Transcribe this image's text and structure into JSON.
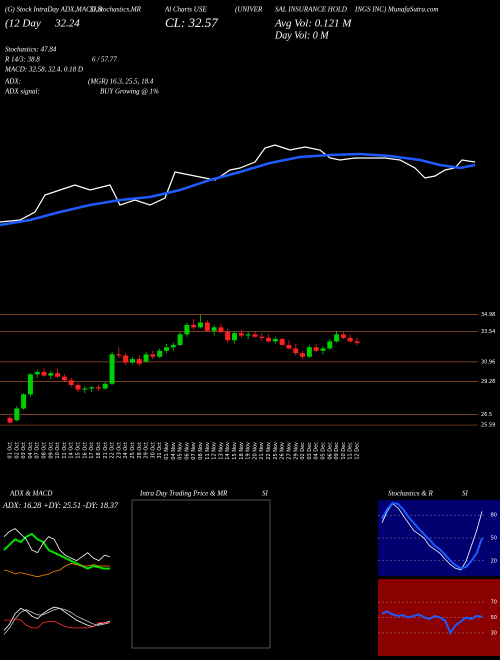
{
  "header": {
    "lines": [
      "(G) Stock IntraDay ADX,MACD,B",
      "SI,Stochastics,MR",
      "Al Charts USE",
      "(UNIVER",
      "SAL INSURANCE HOLD",
      "INGS INC) MunafaSutra.com",
      "(12 Day",
      "32.24",
      "CL: 32.57",
      "Avg Vol: 0.121 M",
      "Day Vol: 0   M",
      "Stochastics: 47.84",
      "R 14/3: 38.8",
      "6 / 57.77",
      "MACD: 32.58, 32.4, 0.18 D",
      "ADX:",
      "(MGR) 16.3, 25.5, 18.4",
      "ADX  signal:",
      "BUY Growing @ 1%"
    ]
  },
  "price_line": {
    "type": "line",
    "xlim": [
      0,
      475
    ],
    "ylim": [
      0,
      120
    ],
    "series": [
      {
        "color": "#ffffff",
        "x": [
          0,
          20,
          35,
          45,
          60,
          75,
          90,
          110,
          120,
          135,
          150,
          165,
          175,
          190,
          205,
          215,
          230,
          240,
          255,
          265,
          275,
          290,
          305,
          320,
          330,
          340,
          355,
          370,
          385,
          400,
          415,
          425,
          435,
          445,
          455,
          462,
          475
        ],
        "values": [
          18,
          20,
          28,
          45,
          50,
          55,
          50,
          55,
          35,
          40,
          35,
          42,
          68,
          65,
          62,
          60,
          70,
          72,
          78,
          92,
          95,
          90,
          93,
          90,
          82,
          80,
          82,
          82,
          82,
          80,
          72,
          62,
          64,
          70,
          72,
          80,
          78
        ]
      },
      {
        "color": "#1e5bff",
        "x": [
          0,
          30,
          60,
          90,
          120,
          150,
          180,
          210,
          240,
          270,
          300,
          330,
          360,
          390,
          420,
          440,
          460,
          475
        ],
        "values": [
          15,
          20,
          28,
          35,
          40,
          43,
          50,
          60,
          68,
          77,
          83,
          85,
          86,
          84,
          80,
          75,
          72,
          75
        ]
      }
    ]
  },
  "candles": {
    "type": "candlestick",
    "dates": [
      "01 Oct",
      "02 Oct",
      "03 Oct",
      "04 Oct",
      "07 Oct",
      "08 Oct",
      "09 Oct",
      "10 Oct",
      "11 Oct",
      "14 Oct",
      "15 Oct",
      "16 Oct",
      "17 Oct",
      "18 Oct",
      "21 Oct",
      "22 Oct",
      "23 Oct",
      "24 Oct",
      "25 Oct",
      "28 Oct",
      "29 Oct",
      "30 Oct",
      "31 Oct",
      "01 Nov",
      "04 Nov",
      "05 Nov",
      "06 Nov",
      "07 Nov",
      "08 Nov",
      "11 Nov",
      "12 Nov",
      "13 Nov",
      "14 Nov",
      "15 Nov",
      "18 Nov",
      "19 Nov",
      "20 Nov",
      "21 Nov",
      "22 Nov",
      "25 Nov",
      "26 Nov",
      "27 Nov",
      "29 Nov",
      "02 Dec",
      "03 Dec",
      "04 Dec",
      "05 Dec",
      "06 Dec",
      "09 Dec",
      "10 Dec",
      "11 Dec",
      "12 Dec"
    ],
    "ohlc": [
      [
        26.2,
        26.4,
        25.7,
        25.8
      ],
      [
        26.0,
        27.2,
        25.9,
        27.0
      ],
      [
        27.0,
        28.3,
        26.9,
        28.2
      ],
      [
        28.2,
        30.0,
        28.0,
        29.9
      ],
      [
        29.9,
        30.3,
        29.6,
        30.1
      ],
      [
        30.1,
        30.4,
        29.7,
        29.8
      ],
      [
        29.8,
        30.2,
        29.5,
        30.0
      ],
      [
        30.0,
        30.4,
        29.6,
        29.7
      ],
      [
        29.7,
        29.9,
        29.3,
        29.4
      ],
      [
        29.4,
        29.6,
        28.8,
        29.0
      ],
      [
        29.0,
        29.2,
        28.4,
        28.6
      ],
      [
        28.6,
        28.9,
        28.3,
        28.7
      ],
      [
        28.7,
        28.9,
        28.4,
        28.8
      ],
      [
        28.8,
        29.0,
        28.5,
        28.7
      ],
      [
        28.7,
        29.3,
        28.6,
        29.1
      ],
      [
        29.1,
        31.8,
        29.0,
        31.6
      ],
      [
        31.6,
        32.2,
        31.3,
        31.5
      ],
      [
        31.5,
        31.7,
        30.7,
        30.9
      ],
      [
        30.9,
        31.4,
        30.8,
        31.2
      ],
      [
        31.2,
        31.5,
        30.6,
        30.8
      ],
      [
        31.0,
        31.8,
        30.9,
        31.6
      ],
      [
        31.6,
        31.9,
        31.2,
        31.4
      ],
      [
        31.4,
        32.1,
        31.3,
        31.9
      ],
      [
        31.9,
        32.5,
        31.7,
        32.2
      ],
      [
        32.2,
        32.6,
        31.9,
        32.4
      ],
      [
        32.4,
        33.5,
        32.3,
        33.3
      ],
      [
        33.3,
        34.3,
        33.1,
        34.1
      ],
      [
        34.1,
        34.6,
        33.7,
        33.9
      ],
      [
        33.9,
        35.0,
        33.8,
        34.3
      ],
      [
        34.3,
        34.5,
        33.5,
        33.6
      ],
      [
        33.6,
        34.1,
        33.2,
        33.9
      ],
      [
        33.9,
        34.2,
        33.4,
        33.5
      ],
      [
        33.5,
        33.8,
        32.6,
        32.8
      ],
      [
        32.8,
        33.6,
        32.5,
        33.4
      ],
      [
        33.4,
        33.7,
        33.0,
        33.2
      ],
      [
        33.2,
        33.5,
        32.9,
        33.3
      ],
      [
        33.3,
        33.6,
        33.0,
        33.1
      ],
      [
        33.1,
        33.4,
        32.8,
        33.0
      ],
      [
        33.0,
        33.3,
        32.6,
        32.7
      ],
      [
        32.7,
        33.1,
        32.5,
        32.9
      ],
      [
        32.9,
        33.0,
        32.3,
        32.4
      ],
      [
        32.4,
        32.8,
        32.0,
        32.1
      ],
      [
        32.1,
        32.5,
        31.5,
        31.7
      ],
      [
        31.7,
        31.9,
        31.2,
        31.4
      ],
      [
        31.4,
        32.4,
        31.3,
        32.2
      ],
      [
        32.2,
        32.5,
        31.8,
        31.9
      ],
      [
        31.9,
        32.3,
        31.6,
        32.1
      ],
      [
        32.1,
        32.9,
        32.0,
        32.7
      ],
      [
        32.7,
        33.6,
        32.6,
        33.3
      ],
      [
        33.3,
        33.5,
        32.9,
        33.0
      ],
      [
        33.0,
        33.3,
        32.6,
        32.7
      ],
      [
        32.7,
        33.0,
        32.4,
        32.57
      ]
    ],
    "ylim": [
      25,
      35.2
    ],
    "yticks": [
      34.98,
      33.54,
      30.96,
      29.28,
      26.5,
      25.59
    ],
    "up_color": "#00d000",
    "down_color": "#ff2020",
    "grid_color": "#a0522d"
  },
  "adx": {
    "type": "line",
    "title": "ADX  & MACD",
    "legend": "ADX: 16.28  +DY: 25.51  -DY: 18.37",
    "ylim": [
      0,
      60
    ],
    "series": [
      {
        "color": "#00e000",
        "values": [
          30,
          34,
          38,
          36,
          40,
          42,
          38,
          36,
          30,
          28,
          26,
          24,
          22,
          20,
          18,
          16,
          18,
          17,
          16,
          16
        ]
      },
      {
        "color": "#ffffff",
        "values": [
          40,
          44,
          46,
          42,
          38,
          30,
          28,
          35,
          40,
          38,
          30,
          26,
          24,
          22,
          25,
          28,
          24,
          22,
          26,
          25
        ]
      },
      {
        "color": "#ff8c00",
        "values": [
          15,
          14,
          12,
          13,
          12,
          11,
          10,
          11,
          12,
          14,
          15,
          18,
          20,
          19,
          18,
          18,
          19,
          18,
          18,
          18
        ]
      }
    ]
  },
  "macd": {
    "type": "line",
    "ylim": [
      -2,
      2
    ],
    "series": [
      {
        "color": "#ffffff",
        "values": [
          -0.5,
          0,
          0.8,
          1.2,
          1.0,
          0.6,
          0.4,
          0.8,
          1.1,
          1.3,
          1.2,
          0.9,
          0.6,
          0.3,
          0.1,
          -0.1,
          -0.2,
          0,
          0.1,
          0.2
        ]
      },
      {
        "color": "#cccccc",
        "values": [
          -0.8,
          -0.3,
          0.4,
          0.9,
          1.1,
          0.9,
          0.7,
          0.7,
          0.9,
          1.1,
          1.2,
          1.1,
          0.9,
          0.6,
          0.4,
          0.2,
          0,
          -0.1,
          0,
          0.1
        ]
      },
      {
        "color": "#ff3030",
        "values": [
          0.3,
          0.3,
          0.4,
          0.3,
          -0.1,
          -0.3,
          -0.3,
          0.1,
          0.2,
          0.2,
          0,
          -0.2,
          -0.3,
          -0.3,
          -0.3,
          -0.3,
          -0.2,
          0.1,
          0.1,
          0.1
        ]
      }
    ]
  },
  "intraday": {
    "title": "Intra Day Trading Price & MR",
    "title2": "SI"
  },
  "stoch": {
    "type": "line",
    "title": "Stochastics & R",
    "title2": "SI",
    "ylim": [
      0,
      100
    ],
    "yticks": [
      80,
      50,
      20
    ],
    "background": "#000070",
    "series": [
      {
        "color": "#ffffff",
        "values": [
          70,
          85,
          95,
          90,
          80,
          70,
          60,
          55,
          50,
          40,
          35,
          30,
          22,
          15,
          10,
          8,
          20,
          40,
          60,
          85
        ]
      },
      {
        "color": "#1e5bff",
        "values": [
          75,
          88,
          96,
          95,
          88,
          78,
          70,
          62,
          55,
          48,
          40,
          35,
          28,
          20,
          14,
          10,
          12,
          20,
          30,
          50
        ]
      }
    ]
  },
  "rsi": {
    "type": "line",
    "ylim": [
      0,
      100
    ],
    "yticks": [
      70,
      50,
      30
    ],
    "background": "#8b0000",
    "series": [
      {
        "color": "#1e5bff",
        "values": [
          55,
          58,
          54,
          52,
          53,
          50,
          52,
          54,
          50,
          48,
          52,
          50,
          46,
          30,
          40,
          45,
          50,
          48,
          52,
          51
        ]
      }
    ]
  }
}
